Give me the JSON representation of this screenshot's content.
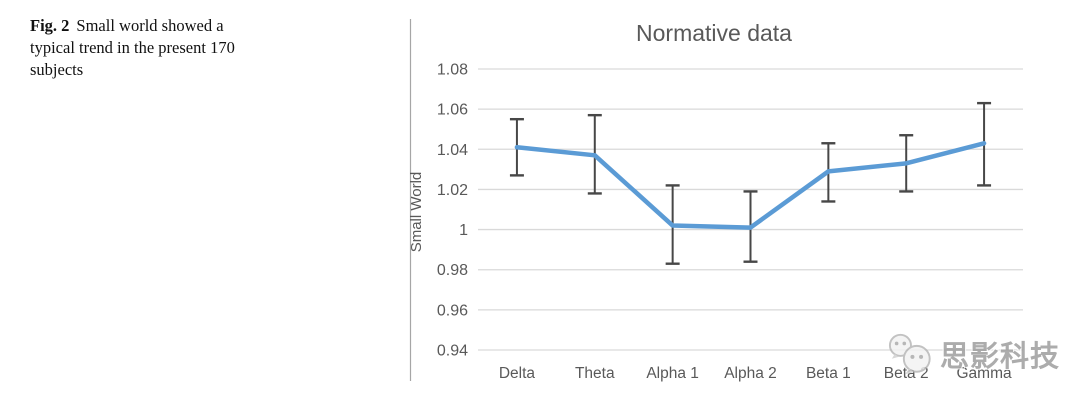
{
  "figure": {
    "caption_label": "Fig. 2",
    "caption_text": "Small world showed a typical trend in the present 170 subjects"
  },
  "watermark": {
    "text": "思影科技",
    "icon": "wechat-logo"
  },
  "chart_data": {
    "type": "line",
    "title": "Normative data",
    "xlabel": "",
    "ylabel": "Small World",
    "categories": [
      "Delta",
      "Theta",
      "Alpha 1",
      "Alpha 2",
      "Beta 1",
      "Beta 2",
      "Gamma"
    ],
    "series": [
      {
        "name": "Small World",
        "values": [
          1.041,
          1.037,
          1.002,
          1.001,
          1.029,
          1.033,
          1.043
        ],
        "error_high": [
          1.055,
          1.057,
          1.022,
          1.019,
          1.043,
          1.047,
          1.063
        ],
        "error_low": [
          1.027,
          1.018,
          0.983,
          0.984,
          1.014,
          1.019,
          1.022
        ]
      }
    ],
    "ylim": [
      0.94,
      1.08
    ],
    "ytick_step": 0.02,
    "ytick_labels": [
      "1.08",
      "1.06",
      "1.04",
      "1.02",
      "1",
      "0.98",
      "0.96",
      "0.94"
    ],
    "grid": true,
    "legend": "none",
    "colors": {
      "line": "#5B9BD5",
      "error_bar": "#474747",
      "gridline": "#d9d9d9",
      "text": "#595959",
      "border": "#a6a6a6"
    }
  }
}
